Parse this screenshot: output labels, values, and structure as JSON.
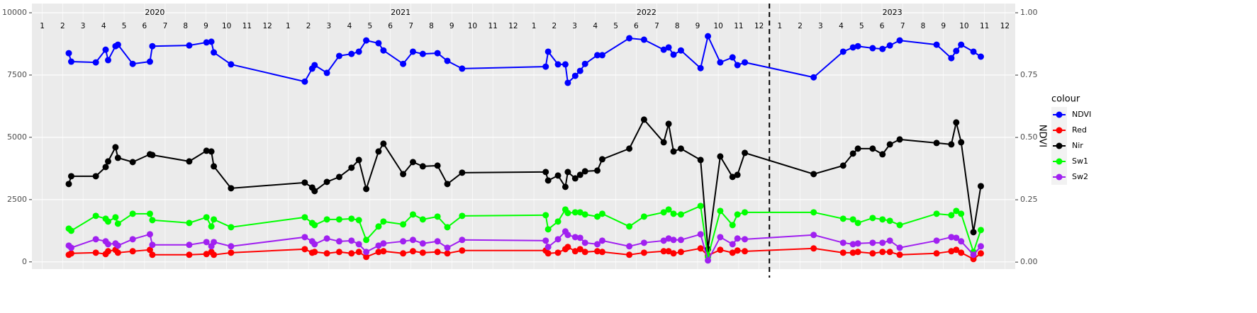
{
  "chart_data": {
    "type": "line",
    "legend_title": "colour",
    "y2_label": "NDVI",
    "xlim": [
      2020.0,
      2024.0
    ],
    "ylim": [
      -290,
      10370
    ],
    "y2lim": [
      -0.028,
      1.037
    ],
    "yticks": [
      0,
      2500,
      5000,
      7500,
      10000
    ],
    "y2ticks": [
      {
        "value": 0,
        "label": "0.00"
      },
      {
        "value": 0.25,
        "label": "0.25"
      },
      {
        "value": 0.5,
        "label": "0.50"
      },
      {
        "value": 0.75,
        "label": "0.75"
      },
      {
        "value": 1,
        "label": "1.00"
      }
    ],
    "xticks": [
      {
        "value": 2020.042,
        "label": "1"
      },
      {
        "value": 2020.125,
        "label": "2"
      },
      {
        "value": 2020.208,
        "label": "3"
      },
      {
        "value": 2020.292,
        "label": "4"
      },
      {
        "value": 2020.375,
        "label": "5"
      },
      {
        "value": 2020.458,
        "label": "6"
      },
      {
        "value": 2020.542,
        "label": "7"
      },
      {
        "value": 2020.625,
        "label": "8"
      },
      {
        "value": 2020.708,
        "label": "9"
      },
      {
        "value": 2020.792,
        "label": "10"
      },
      {
        "value": 2020.875,
        "label": "11"
      },
      {
        "value": 2020.958,
        "label": "12"
      },
      {
        "value": 2021.042,
        "label": "1"
      },
      {
        "value": 2021.125,
        "label": "2"
      },
      {
        "value": 2021.208,
        "label": "3"
      },
      {
        "value": 2021.292,
        "label": "4"
      },
      {
        "value": 2021.375,
        "label": "5"
      },
      {
        "value": 2021.458,
        "label": "6"
      },
      {
        "value": 2021.542,
        "label": "7"
      },
      {
        "value": 2021.625,
        "label": "8"
      },
      {
        "value": 2021.708,
        "label": "9"
      },
      {
        "value": 2021.792,
        "label": "10"
      },
      {
        "value": 2021.875,
        "label": "11"
      },
      {
        "value": 2021.958,
        "label": "12"
      },
      {
        "value": 2022.042,
        "label": "1"
      },
      {
        "value": 2022.125,
        "label": "2"
      },
      {
        "value": 2022.208,
        "label": "3"
      },
      {
        "value": 2022.292,
        "label": "4"
      },
      {
        "value": 2022.375,
        "label": "5"
      },
      {
        "value": 2022.458,
        "label": "6"
      },
      {
        "value": 2022.542,
        "label": "7"
      },
      {
        "value": 2022.625,
        "label": "8"
      },
      {
        "value": 2022.708,
        "label": "9"
      },
      {
        "value": 2022.792,
        "label": "10"
      },
      {
        "value": 2022.875,
        "label": "11"
      },
      {
        "value": 2022.958,
        "label": "12"
      },
      {
        "value": 2023.042,
        "label": "1"
      },
      {
        "value": 2023.125,
        "label": "2"
      },
      {
        "value": 2023.208,
        "label": "3"
      },
      {
        "value": 2023.292,
        "label": "4"
      },
      {
        "value": 2023.375,
        "label": "5"
      },
      {
        "value": 2023.458,
        "label": "6"
      },
      {
        "value": 2023.542,
        "label": "7"
      },
      {
        "value": 2023.625,
        "label": "8"
      },
      {
        "value": 2023.708,
        "label": "9"
      },
      {
        "value": 2023.792,
        "label": "10"
      },
      {
        "value": 2023.875,
        "label": "11"
      },
      {
        "value": 2023.958,
        "label": "12"
      }
    ],
    "year_labels": [
      {
        "value": 2020.5,
        "label": "2020"
      },
      {
        "value": 2021.5,
        "label": "2021"
      },
      {
        "value": 2022.5,
        "label": "2022"
      },
      {
        "value": 2023.5,
        "label": "2023"
      }
    ],
    "vline": 2023.0,
    "grid": true,
    "legend": "right",
    "x": [
      2020.15,
      2020.16,
      2020.26,
      2020.3,
      2020.31,
      2020.34,
      2020.35,
      2020.41,
      2020.48,
      2020.49,
      2020.64,
      2020.71,
      2020.73,
      2020.74,
      2020.81,
      2021.11,
      2021.14,
      2021.15,
      2021.2,
      2021.25,
      2021.3,
      2021.33,
      2021.36,
      2021.41,
      2021.43,
      2021.51,
      2021.55,
      2021.59,
      2021.65,
      2021.69,
      2021.75,
      2022.09,
      2022.1,
      2022.14,
      2022.17,
      2022.18,
      2022.21,
      2022.23,
      2022.25,
      2022.3,
      2022.32,
      2022.43,
      2022.49,
      2022.57,
      2022.59,
      2022.61,
      2022.64,
      2022.72,
      2022.75,
      2022.8,
      2022.85,
      2022.87,
      2022.9,
      2023.18,
      2023.3,
      2023.34,
      2023.36,
      2023.42,
      2023.46,
      2023.49,
      2023.53,
      2023.68,
      2023.74,
      2023.76,
      2023.78,
      2023.83,
      2023.86
    ],
    "series": [
      {
        "name": "NDVI",
        "color": "#0000ff",
        "axis": "y2",
        "values": [
          0.838,
          0.804,
          0.801,
          0.852,
          0.81,
          0.866,
          0.872,
          0.795,
          0.804,
          0.866,
          0.869,
          0.881,
          0.884,
          0.841,
          0.793,
          0.724,
          0.776,
          0.79,
          0.759,
          0.827,
          0.835,
          0.844,
          0.889,
          0.878,
          0.849,
          0.795,
          0.844,
          0.835,
          0.838,
          0.807,
          0.776,
          0.784,
          0.844,
          0.793,
          0.793,
          0.719,
          0.747,
          0.767,
          0.795,
          0.83,
          0.83,
          0.898,
          0.892,
          0.852,
          0.861,
          0.832,
          0.849,
          0.778,
          0.906,
          0.801,
          0.821,
          0.79,
          0.801,
          0.741,
          0.844,
          0.861,
          0.866,
          0.858,
          0.855,
          0.869,
          0.889,
          0.872,
          0.818,
          0.847,
          0.872,
          0.844,
          0.824
        ]
      },
      {
        "name": "Red",
        "color": "#ff0000",
        "values": [
          284,
          341,
          369,
          313,
          426,
          483,
          369,
          426,
          483,
          284,
          284,
          313,
          398,
          284,
          369,
          511,
          369,
          398,
          341,
          398,
          341,
          398,
          199,
          398,
          426,
          341,
          426,
          369,
          398,
          341,
          455,
          455,
          341,
          369,
          511,
          597,
          426,
          511,
          398,
          426,
          398,
          284,
          369,
          426,
          426,
          341,
          398,
          540,
          256,
          483,
          369,
          455,
          426,
          540,
          369,
          369,
          398,
          341,
          398,
          398,
          284,
          341,
          426,
          483,
          369,
          114,
          341
        ]
      },
      {
        "name": "Nir",
        "color": "#000000",
        "values": [
          3125,
          3438,
          3438,
          3807,
          4034,
          4602,
          4176,
          4006,
          4318,
          4290,
          4034,
          4460,
          4432,
          3835,
          2955,
          3182,
          2983,
          2841,
          3210,
          3409,
          3779,
          4091,
          2926,
          4432,
          4744,
          3523,
          4006,
          3835,
          3864,
          3125,
          3580,
          3608,
          3267,
          3466,
          3011,
          3608,
          3352,
          3494,
          3636,
          3665,
          4119,
          4546,
          5710,
          4801,
          5540,
          4432,
          4546,
          4091,
          511,
          4233,
          3409,
          3494,
          4375,
          3523,
          3864,
          4347,
          4546,
          4546,
          4318,
          4716,
          4915,
          4773,
          4716,
          5597,
          4801,
          1193,
          3040
        ]
      },
      {
        "name": "Sw1",
        "color": "#00ff00",
        "values": [
          1335,
          1250,
          1847,
          1733,
          1619,
          1790,
          1534,
          1932,
          1932,
          1676,
          1563,
          1790,
          1421,
          1705,
          1392,
          1790,
          1563,
          1477,
          1705,
          1705,
          1733,
          1676,
          881,
          1421,
          1619,
          1506,
          1903,
          1705,
          1818,
          1392,
          1847,
          1875,
          1307,
          1619,
          2102,
          1960,
          1989,
          1989,
          1903,
          1818,
          1932,
          1421,
          1818,
          1989,
          2102,
          1932,
          1903,
          2244,
          199,
          2046,
          1477,
          1903,
          1989,
          1989,
          1733,
          1705,
          1563,
          1761,
          1705,
          1648,
          1477,
          1932,
          1875,
          2046,
          1932,
          398,
          1278
        ]
      },
      {
        "name": "Sw2",
        "color": "#a020f0",
        "values": [
          653,
          568,
          909,
          824,
          710,
          739,
          653,
          909,
          1108,
          682,
          682,
          795,
          625,
          795,
          625,
          994,
          824,
          710,
          938,
          824,
          852,
          710,
          398,
          653,
          739,
          824,
          881,
          739,
          824,
          568,
          881,
          852,
          597,
          909,
          1222,
          1080,
          994,
          966,
          767,
          710,
          852,
          625,
          767,
          852,
          938,
          881,
          881,
          1108,
          57,
          994,
          710,
          938,
          909,
          1080,
          767,
          710,
          739,
          767,
          767,
          852,
          568,
          852,
          994,
          966,
          824,
          284,
          625
        ]
      }
    ]
  }
}
